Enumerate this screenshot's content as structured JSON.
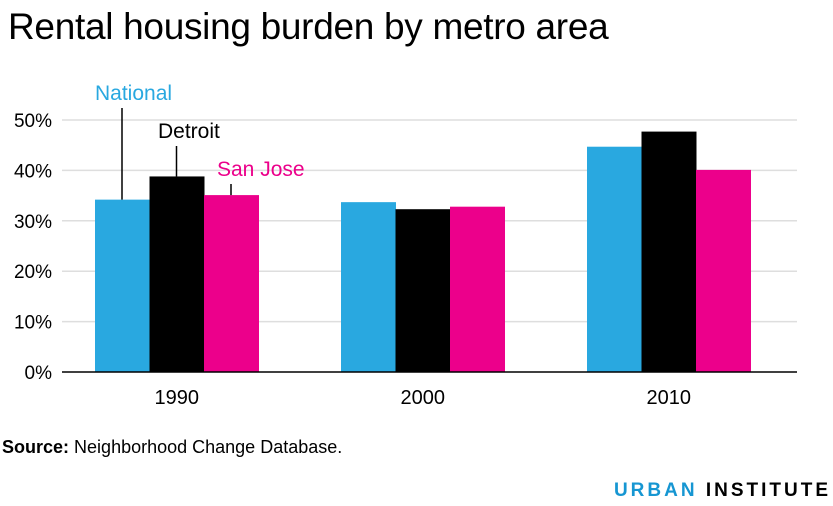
{
  "title": "Rental housing burden by metro area",
  "source": {
    "label": "Source:",
    "text": "Neighborhood Change Database."
  },
  "brand": {
    "part1": "URBAN",
    "part2": "INSTITUTE",
    "color1": "#1696d2",
    "color2": "#000000"
  },
  "chart_data": {
    "type": "bar",
    "title": "Rental housing burden by metro area",
    "xlabel": "",
    "ylabel": "",
    "categories": [
      "1990",
      "2000",
      "2010"
    ],
    "ylim": [
      0,
      50
    ],
    "yticks": [
      0,
      10,
      20,
      30,
      40,
      50
    ],
    "ytick_labels": [
      "0%",
      "10%",
      "20%",
      "30%",
      "40%",
      "50%"
    ],
    "grid": true,
    "legend": "direct labels with leader lines above 1990 bars",
    "series": [
      {
        "name": "National",
        "color": "#29a8e0",
        "values": [
          34.2,
          33.7,
          44.7
        ]
      },
      {
        "name": "Detroit",
        "color": "#000000",
        "values": [
          38.8,
          32.3,
          47.7
        ]
      },
      {
        "name": "San Jose",
        "color": "#ec008b",
        "values": [
          35.1,
          32.8,
          40.1
        ]
      }
    ]
  }
}
